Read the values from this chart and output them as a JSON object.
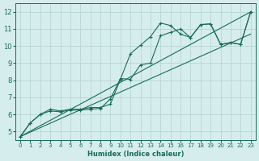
{
  "xlabel": "Humidex (Indice chaleur)",
  "bg_color": "#d6eded",
  "line_color": "#1a6b5a",
  "grid_color": "#b8d4d4",
  "xlim": [
    -0.5,
    23.5
  ],
  "ylim": [
    4.5,
    12.5
  ],
  "xticks": [
    0,
    1,
    2,
    3,
    4,
    5,
    6,
    7,
    8,
    9,
    10,
    11,
    12,
    13,
    14,
    15,
    16,
    17,
    18,
    19,
    20,
    21,
    22,
    23
  ],
  "yticks": [
    5,
    6,
    7,
    8,
    9,
    10,
    11,
    12
  ],
  "line1_x": [
    0,
    1,
    2,
    3,
    4,
    5,
    6,
    7,
    8,
    9,
    10,
    11,
    12,
    13,
    14,
    15,
    16,
    17,
    18,
    19,
    20,
    21,
    22,
    23
  ],
  "line1_y": [
    4.7,
    5.5,
    6.0,
    6.3,
    6.2,
    6.3,
    6.3,
    6.4,
    6.4,
    6.6,
    8.05,
    9.55,
    10.05,
    10.55,
    11.35,
    11.2,
    10.7,
    10.5,
    11.25,
    11.3,
    10.1,
    10.2,
    10.1,
    12.0
  ],
  "line2_x": [
    0,
    1,
    2,
    3,
    4,
    5,
    6,
    7,
    8,
    9,
    10,
    11,
    12,
    13,
    14,
    15,
    16,
    17,
    18,
    19,
    20,
    21,
    22,
    23
  ],
  "line2_y": [
    4.7,
    5.5,
    6.0,
    6.2,
    6.15,
    6.25,
    6.25,
    6.3,
    6.35,
    6.9,
    8.1,
    8.05,
    8.9,
    9.0,
    10.6,
    10.8,
    11.0,
    10.5,
    11.25,
    11.3,
    10.1,
    10.2,
    10.1,
    12.0
  ],
  "reg_line1": [
    [
      0,
      23
    ],
    [
      4.7,
      12.0
    ]
  ],
  "reg_line2": [
    [
      0,
      23
    ],
    [
      4.7,
      10.7
    ]
  ]
}
